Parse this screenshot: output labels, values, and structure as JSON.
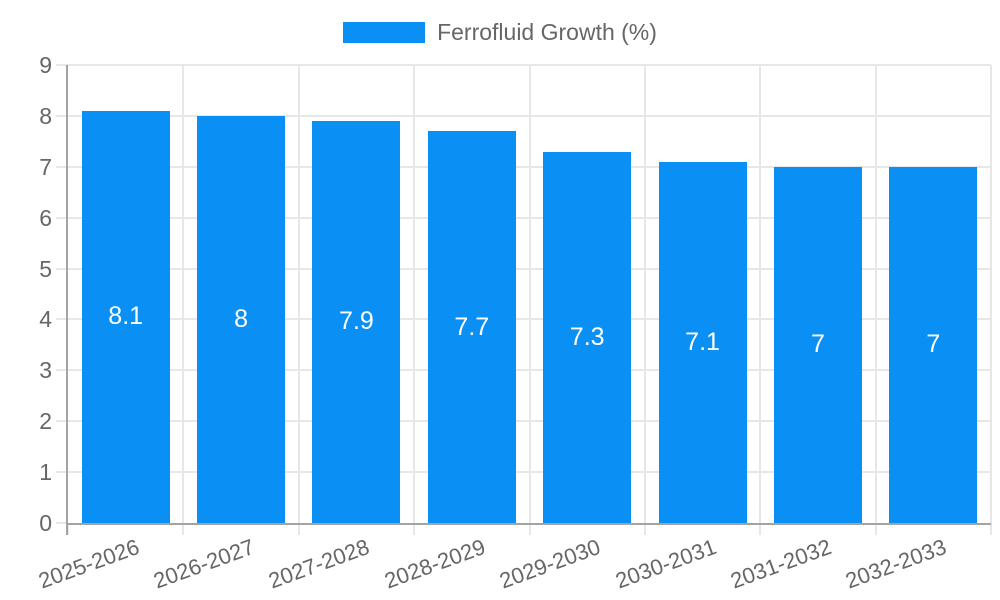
{
  "colors": {
    "bar": "#0a90f5",
    "grid": "#e7e7e7",
    "axis": "#a3a3a3",
    "text": "#666666",
    "bar_label": "#ffffff"
  },
  "chart_data": {
    "type": "bar",
    "title": "",
    "legend": [
      "Ferrofluid Growth (%)"
    ],
    "legend_position": "top-center",
    "categories": [
      "2025-2026",
      "2026-2027",
      "2027-2028",
      "2028-2029",
      "2029-2030",
      "2030-2031",
      "2031-2032",
      "2032-2033"
    ],
    "values": [
      8.1,
      8,
      7.9,
      7.7,
      7.3,
      7.1,
      7,
      7
    ],
    "bar_value_labels": [
      "8.1",
      "8",
      "7.9",
      "7.7",
      "7.3",
      "7.1",
      "7",
      "7"
    ],
    "bar_label_position": "center-of-bar",
    "xlabel": "",
    "ylabel": "",
    "ylim": [
      0,
      9
    ],
    "yticks": [
      0,
      1,
      2,
      3,
      4,
      5,
      6,
      7,
      8,
      9
    ],
    "grid": true
  }
}
